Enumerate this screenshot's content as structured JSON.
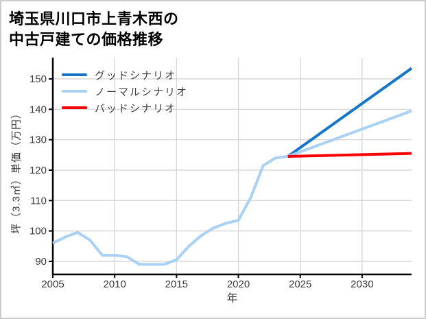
{
  "frame": {
    "border_color": "#cccccc",
    "background": "#ffffff"
  },
  "header": {
    "title_line1": "埼玉県川口市上青木西の",
    "title_line2": "中古戸建ての価格推移"
  },
  "legend": {
    "position": "upper-left",
    "entries": [
      {
        "label": "グッドシナリオ",
        "color": "#1376c8"
      },
      {
        "label": "ノーマルシナリオ",
        "color": "#a8d1f5"
      },
      {
        "label": "バッドシナリオ",
        "color": "#fb0000"
      }
    ]
  },
  "chart_data": {
    "type": "line",
    "title": "埼玉県川口市上青木西の中古戸建ての価格推移",
    "xlabel": "年",
    "ylabel": "坪（3.3㎡）単価（万円）",
    "xlim": [
      2005,
      2034
    ],
    "ylim": [
      85.7,
      157
    ],
    "xticks": [
      2005,
      2010,
      2015,
      2020,
      2025,
      2030
    ],
    "yticks": [
      90,
      100,
      110,
      120,
      130,
      140,
      150
    ],
    "grid": true,
    "grid_color": "#d9d9d9",
    "axis_color": "#000000",
    "series": [
      {
        "id": "history",
        "show_in_legend": false,
        "color": "#a8d1f5",
        "width": 4,
        "x": [
          2005,
          2006,
          2007,
          2008,
          2009,
          2010,
          2011,
          2012,
          2013,
          2014,
          2015,
          2016,
          2017,
          2018,
          2019,
          2020,
          2021,
          2022,
          2023,
          2024
        ],
        "values": [
          96,
          98,
          99.5,
          97,
          92,
          92,
          91.5,
          89,
          89,
          89,
          90.5,
          95,
          98.5,
          101,
          102.5,
          103.5,
          111,
          121.5,
          124,
          124.5
        ]
      },
      {
        "id": "good-scenario",
        "label": "グッドシナリオ",
        "show_in_legend": true,
        "color": "#1376c8",
        "width": 4,
        "x": [
          2024,
          2034
        ],
        "values": [
          124.5,
          153.5
        ]
      },
      {
        "id": "normal-scenario",
        "label": "ノーマルシナリオ",
        "show_in_legend": true,
        "color": "#a8d1f5",
        "width": 4,
        "x": [
          2024,
          2034
        ],
        "values": [
          124.5,
          139.5
        ]
      },
      {
        "id": "bad-scenario",
        "label": "バッドシナリオ",
        "show_in_legend": true,
        "color": "#fb0000",
        "width": 4,
        "x": [
          2024,
          2034
        ],
        "values": [
          124.5,
          125.5
        ]
      }
    ]
  }
}
